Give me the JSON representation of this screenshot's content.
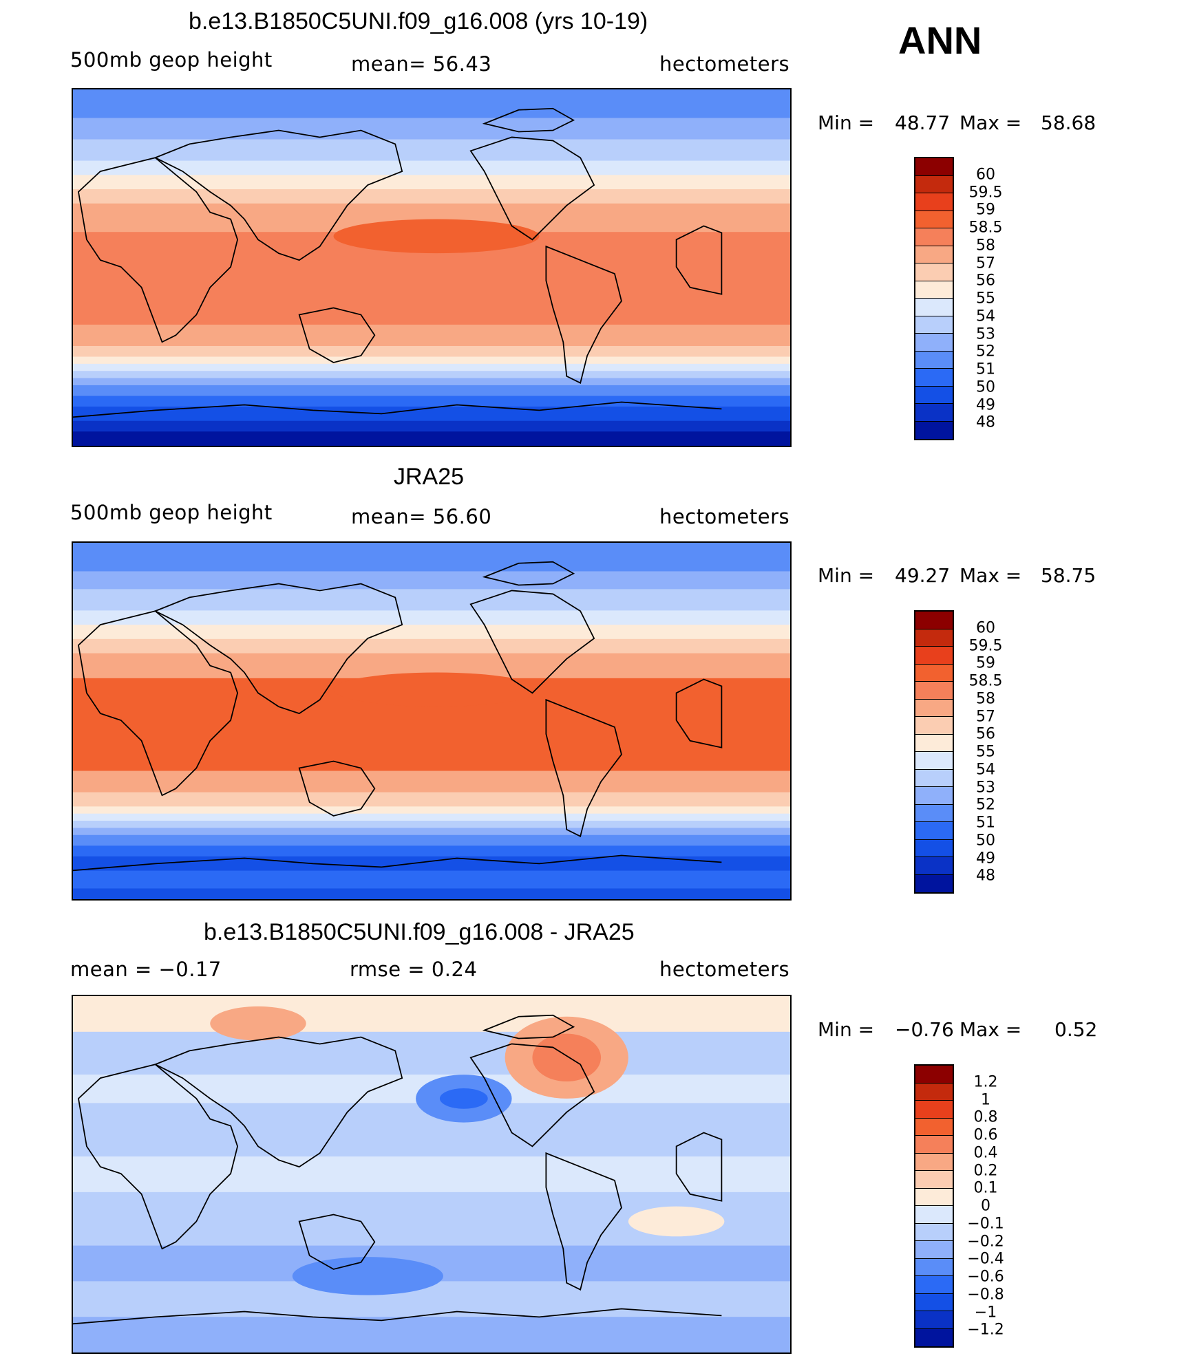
{
  "season": "ANN",
  "palette": {
    "abs": [
      "#00007f",
      "#00149e",
      "#0a32c6",
      "#1450e6",
      "#2b6af5",
      "#5a8df8",
      "#8fb0fa",
      "#b8cffb",
      "#dbe8fc",
      "#fdebd9",
      "#fbcdb2",
      "#f8a884",
      "#f5805a",
      "#f2612f",
      "#e8401c",
      "#c42a0d",
      "#8c0000"
    ],
    "diff": [
      "#00007f",
      "#00149e",
      "#0a32c6",
      "#1450e6",
      "#2b6af5",
      "#5a8df8",
      "#8fb0fa",
      "#b8cffb",
      "#dbe8fc",
      "#fdebd9",
      "#fbcdb2",
      "#f8a884",
      "#f5805a",
      "#f2612f",
      "#e8401c",
      "#c42a0d",
      "#8c0000"
    ]
  },
  "panels": [
    {
      "title": "b.e13.B1850C5UNI.f09_g16.008 (yrs 10-19)",
      "left": "500mb  geop  height",
      "mid": "mean=   56.43",
      "right": "hectometers",
      "min_label": "Min  =",
      "min_val": "48.77",
      "max_label": "Max  =",
      "max_val": "58.68",
      "type": "model",
      "levels": [
        "60",
        "59.5",
        "59",
        "58.5",
        "58",
        "57",
        "56",
        "55",
        "54",
        "53",
        "52",
        "51",
        "50",
        "49",
        "48"
      ]
    },
    {
      "title": "JRA25",
      "left": "500mb  geop  height",
      "mid": "mean=   56.60",
      "right": "hectometers",
      "min_label": "Min  =",
      "min_val": "49.27",
      "max_label": "Max  =",
      "max_val": "58.75",
      "type": "obs",
      "levels": [
        "60",
        "59.5",
        "59",
        "58.5",
        "58",
        "57",
        "56",
        "55",
        "54",
        "53",
        "52",
        "51",
        "50",
        "49",
        "48"
      ]
    },
    {
      "title": "b.e13.B1850C5UNI.f09_g16.008 - JRA25",
      "left": "mean  =    −0.17",
      "mid": "rmse  =     0.24",
      "right": "hectometers",
      "min_label": "Min  =",
      "min_val": "−0.76",
      "max_label": "Max  =",
      "max_val": "0.52",
      "type": "diff",
      "levels": [
        "1.2",
        "1",
        "0.8",
        "0.6",
        "0.4",
        "0.2",
        "0.1",
        "0",
        "−0.1",
        "−0.2",
        "−0.4",
        "−0.6",
        "−0.8",
        "−1",
        "−1.2"
      ]
    }
  ]
}
